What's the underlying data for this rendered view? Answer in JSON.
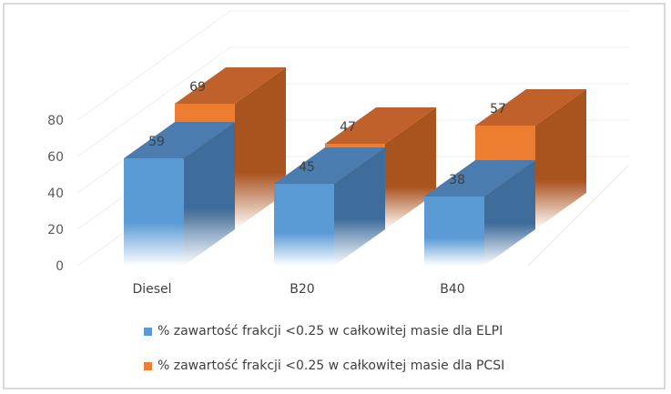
{
  "chart_data": {
    "type": "bar",
    "variant": "3d-clustered-depth",
    "categories": [
      "Diesel",
      "B20",
      "B40"
    ],
    "series": [
      {
        "name": "% zawartość frakcji <0.25 w całkowitej masie dla ELPI",
        "values": [
          59,
          45,
          38
        ],
        "color": "#5b9bd5"
      },
      {
        "name": "% zawartość frakcji <0.25 w całkowitej masie dla PCSI",
        "values": [
          69,
          47,
          57
        ],
        "color": "#ed7d31"
      }
    ],
    "yticks": [
      "0",
      "20",
      "40",
      "60",
      "80"
    ],
    "ylim": [
      0,
      80
    ],
    "grid": true,
    "legend": "bottom"
  }
}
